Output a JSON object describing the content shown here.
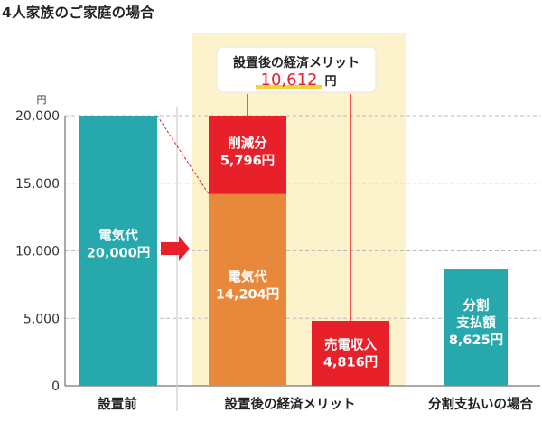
{
  "title": "4人家族のご家庭の場合",
  "chart_data": {
    "type": "bar",
    "ylim": [
      0,
      20000
    ],
    "yticks": [
      0,
      5000,
      10000,
      15000,
      20000
    ],
    "ytick_labels": [
      "0",
      "5,000",
      "10,000",
      "15,000",
      "20,000"
    ],
    "yunit": "円",
    "grid": true,
    "categories": [
      "設置前",
      "設置後の経済メリット",
      "分割支払いの場合"
    ],
    "bars": [
      {
        "id": "before",
        "bottom": 0,
        "value": 20000,
        "color": "#26a8ad",
        "label_lines": [
          "電気代",
          "20,000円"
        ]
      },
      {
        "id": "after-electric",
        "bottom": 0,
        "value": 14204,
        "color": "#e8883a",
        "label_lines": [
          "電気代",
          "14,204円"
        ]
      },
      {
        "id": "after-reduction",
        "bottom": 14204,
        "value": 5796,
        "color": "#e8202a",
        "label_lines": [
          "削減分",
          "5,796円"
        ]
      },
      {
        "id": "after-sales",
        "bottom": 0,
        "value": 4816,
        "color": "#e8202a",
        "label_lines": [
          "売電収入",
          "4,816円"
        ]
      },
      {
        "id": "installment",
        "bottom": 0,
        "value": 8625,
        "color": "#26a8ad",
        "label_lines": [
          "分割",
          "支払額",
          "8,625円"
        ]
      }
    ],
    "callout": {
      "title": "設置後の経済メリット",
      "value": "10,612",
      "unit": "円"
    },
    "colors": {
      "highlight_bg": "#fcf3cc",
      "grid": "#bbbbbb",
      "callout_value": "#e8202a",
      "callout_underline": "#f6d23a",
      "arrow": "#e8202a",
      "axis": "#555555"
    }
  }
}
